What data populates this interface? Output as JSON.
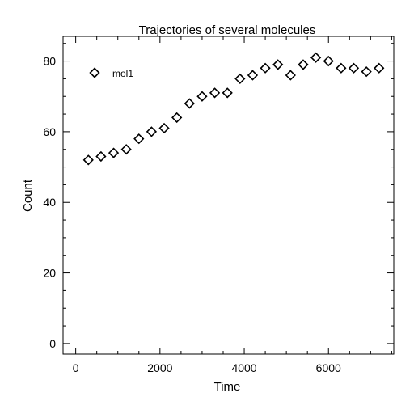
{
  "chart_data": {
    "type": "scatter",
    "title": "Trajectories of several molecules",
    "xlabel": "Time",
    "ylabel": "Count",
    "xlim": [
      -300,
      7550
    ],
    "ylim": [
      -3,
      87
    ],
    "xticks": [
      0,
      2000,
      4000,
      6000
    ],
    "xtick_labels": [
      "0",
      "2000",
      "4000",
      "6000"
    ],
    "yticks": [
      0,
      20,
      40,
      60,
      80
    ],
    "ytick_labels": [
      "0",
      "20",
      "40",
      "60",
      "80"
    ],
    "x_minor_step": 500,
    "y_minor_step": 5,
    "legend_position": "top-left",
    "series": [
      {
        "name": "mol1",
        "marker": "diamond-open",
        "x": [
          300,
          600,
          900,
          1200,
          1500,
          1800,
          2100,
          2400,
          2700,
          3000,
          3300,
          3600,
          3900,
          4200,
          4500,
          4800,
          5100,
          5400,
          5700,
          6000,
          6300,
          6600,
          6900,
          7200
        ],
        "y": [
          52,
          53,
          54,
          55,
          58,
          60,
          61,
          64,
          68,
          70,
          71,
          71,
          75,
          76,
          78,
          79,
          76,
          79,
          81,
          80,
          78,
          78,
          77,
          78
        ]
      }
    ]
  }
}
